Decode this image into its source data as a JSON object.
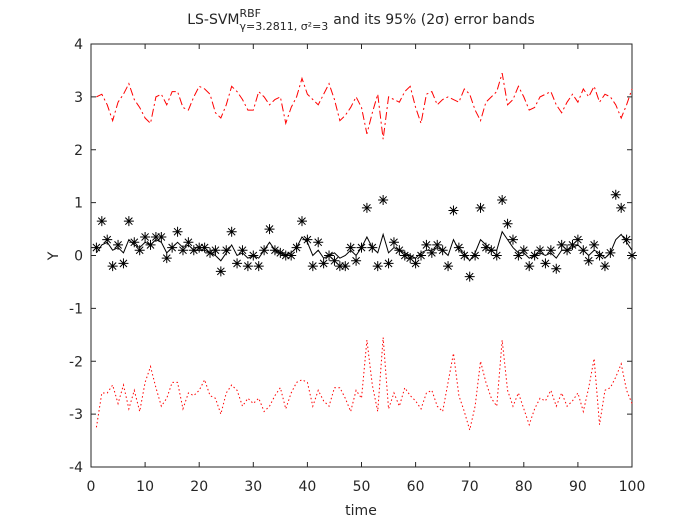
{
  "chart_data": {
    "type": "line",
    "title": {
      "text": "LS-SVM",
      "superscript": "RBF",
      "subscript": "γ=3.2811, σ²=3",
      "rest": "and its 95% (2σ) error bands"
    },
    "xlabel": "time",
    "ylabel": "Y",
    "x": [
      1,
      2,
      3,
      4,
      5,
      6,
      7,
      8,
      9,
      10,
      11,
      12,
      13,
      14,
      15,
      16,
      17,
      18,
      19,
      20,
      21,
      22,
      23,
      24,
      25,
      26,
      27,
      28,
      29,
      30,
      31,
      32,
      33,
      34,
      35,
      36,
      37,
      38,
      39,
      40,
      41,
      42,
      43,
      44,
      45,
      46,
      47,
      48,
      49,
      50,
      51,
      52,
      53,
      54,
      55,
      56,
      57,
      58,
      59,
      60,
      61,
      62,
      63,
      64,
      65,
      66,
      67,
      68,
      69,
      70,
      71,
      72,
      73,
      74,
      75,
      76,
      77,
      78,
      79,
      80,
      81,
      82,
      83,
      84,
      85,
      86,
      87,
      88,
      89,
      90,
      91,
      92,
      93,
      94,
      95,
      96,
      97,
      98,
      99,
      100
    ],
    "series": [
      {
        "color": "#000000",
        "style": "none",
        "marker": "star",
        "values": [
          0.15,
          0.65,
          0.3,
          -0.2,
          0.2,
          -0.15,
          0.65,
          0.25,
          0.1,
          0.35,
          0.2,
          0.35,
          0.35,
          -0.05,
          0.15,
          0.45,
          0.1,
          0.25,
          0.1,
          0.15,
          0.15,
          0.05,
          0.1,
          -0.3,
          0.1,
          0.45,
          -0.15,
          0.1,
          -0.2,
          0.0,
          -0.2,
          0.1,
          0.5,
          0.1,
          0.05,
          0.0,
          0.0,
          0.15,
          0.65,
          0.3,
          -0.2,
          0.25,
          -0.15,
          0.0,
          -0.1,
          -0.2,
          -0.2,
          0.15,
          -0.1,
          0.15,
          0.9,
          0.15,
          -0.2,
          1.05,
          -0.15,
          0.25,
          0.1,
          0.0,
          -0.05,
          -0.15,
          0.0,
          0.2,
          0.05,
          0.2,
          0.1,
          -0.2,
          0.85,
          0.15,
          0.0,
          -0.4,
          0.0,
          0.9,
          0.15,
          0.1,
          0.0,
          1.05,
          0.6,
          0.3,
          0.0,
          0.1,
          -0.2,
          0.0,
          0.1,
          -0.15,
          0.1,
          -0.25,
          0.2,
          0.1,
          0.2,
          0.3,
          0.1,
          -0.1,
          0.2,
          0.0,
          -0.2,
          0.05,
          1.15,
          0.9,
          0.3,
          0.0
        ]
      },
      {
        "color": "#000000",
        "style": "solid",
        "marker": "none",
        "values": [
          0.05,
          0.2,
          0.25,
          0.1,
          0.15,
          0.05,
          0.3,
          0.2,
          0.15,
          0.25,
          0.2,
          0.3,
          0.25,
          0.05,
          0.15,
          0.25,
          0.15,
          0.2,
          0.1,
          0.1,
          0.1,
          0.05,
          0.0,
          -0.1,
          0.05,
          0.2,
          0.0,
          0.05,
          -0.05,
          0.0,
          -0.05,
          0.1,
          0.25,
          0.1,
          0.05,
          0.0,
          0.05,
          0.15,
          0.35,
          0.25,
          0.0,
          0.1,
          -0.05,
          0.0,
          0.05,
          -0.05,
          0.0,
          0.1,
          0.0,
          0.15,
          0.35,
          0.15,
          0.05,
          0.4,
          0.05,
          0.15,
          0.1,
          0.05,
          0.0,
          -0.05,
          0.05,
          0.1,
          0.1,
          0.15,
          0.1,
          0.0,
          0.3,
          0.1,
          0.05,
          -0.1,
          0.05,
          0.3,
          0.2,
          0.1,
          0.1,
          0.45,
          0.3,
          0.15,
          0.05,
          0.05,
          -0.05,
          0.0,
          0.05,
          0.0,
          0.05,
          -0.05,
          0.1,
          0.1,
          0.15,
          0.2,
          0.1,
          0.0,
          0.1,
          0.05,
          -0.05,
          0.05,
          0.3,
          0.4,
          0.25,
          0.1
        ]
      },
      {
        "color": "#ff0000",
        "style": "dashdot",
        "marker": "none",
        "values": [
          3.0,
          3.05,
          2.85,
          2.55,
          2.9,
          3.05,
          3.25,
          2.95,
          2.8,
          2.6,
          2.5,
          3.0,
          3.05,
          2.85,
          3.1,
          3.1,
          2.8,
          2.75,
          3.0,
          3.2,
          3.15,
          3.05,
          2.7,
          2.6,
          2.85,
          3.2,
          3.1,
          2.95,
          2.75,
          2.75,
          3.1,
          3.0,
          2.85,
          2.95,
          3.0,
          2.5,
          2.8,
          3.0,
          3.35,
          3.05,
          2.95,
          2.85,
          3.05,
          3.25,
          2.95,
          2.55,
          2.65,
          2.8,
          3.0,
          2.8,
          2.3,
          2.7,
          3.05,
          2.2,
          3.0,
          2.95,
          2.9,
          3.1,
          3.2,
          2.8,
          2.5,
          3.05,
          3.1,
          2.85,
          2.95,
          3.0,
          2.95,
          2.9,
          3.15,
          3.05,
          2.75,
          2.55,
          2.9,
          3.0,
          3.1,
          3.45,
          2.85,
          2.95,
          3.2,
          3.0,
          2.75,
          2.8,
          3.0,
          3.05,
          3.1,
          2.85,
          2.7,
          2.9,
          3.05,
          2.9,
          3.15,
          3.0,
          3.2,
          2.9,
          3.05,
          3.0,
          2.85,
          2.6,
          2.85,
          3.15
        ]
      },
      {
        "color": "#ff0000",
        "style": "dotted",
        "marker": "none",
        "values": [
          -3.25,
          -2.6,
          -2.6,
          -2.45,
          -2.8,
          -2.45,
          -2.9,
          -2.55,
          -2.95,
          -2.4,
          -2.1,
          -2.5,
          -2.85,
          -2.7,
          -2.4,
          -2.4,
          -2.9,
          -2.6,
          -2.65,
          -2.55,
          -2.35,
          -2.65,
          -2.7,
          -3.0,
          -2.6,
          -2.45,
          -2.55,
          -2.85,
          -2.7,
          -2.8,
          -2.7,
          -2.95,
          -2.85,
          -2.65,
          -2.5,
          -2.9,
          -2.6,
          -2.4,
          -2.35,
          -2.4,
          -2.85,
          -2.55,
          -2.75,
          -2.85,
          -2.5,
          -2.5,
          -2.7,
          -2.95,
          -2.55,
          -2.7,
          -1.6,
          -2.45,
          -2.95,
          -1.55,
          -2.9,
          -2.6,
          -2.85,
          -2.5,
          -2.65,
          -2.75,
          -2.9,
          -2.6,
          -2.55,
          -2.85,
          -2.95,
          -2.4,
          -1.85,
          -2.65,
          -2.95,
          -3.3,
          -2.85,
          -2.0,
          -2.4,
          -2.7,
          -2.85,
          -1.6,
          -2.55,
          -2.85,
          -2.6,
          -2.9,
          -3.2,
          -2.9,
          -2.7,
          -2.75,
          -2.55,
          -2.85,
          -2.6,
          -2.85,
          -2.75,
          -2.6,
          -2.95,
          -2.5,
          -1.95,
          -3.2,
          -2.55,
          -2.5,
          -2.3,
          -2.05,
          -2.55,
          -2.8
        ]
      }
    ],
    "xlim": [
      0,
      100
    ],
    "xticks": [
      0,
      10,
      20,
      30,
      40,
      50,
      60,
      70,
      80,
      90,
      100
    ],
    "ylim": [
      -4,
      4
    ],
    "yticks": [
      -4,
      -3,
      -2,
      -1,
      0,
      1,
      2,
      3,
      4
    ],
    "grid": false
  }
}
